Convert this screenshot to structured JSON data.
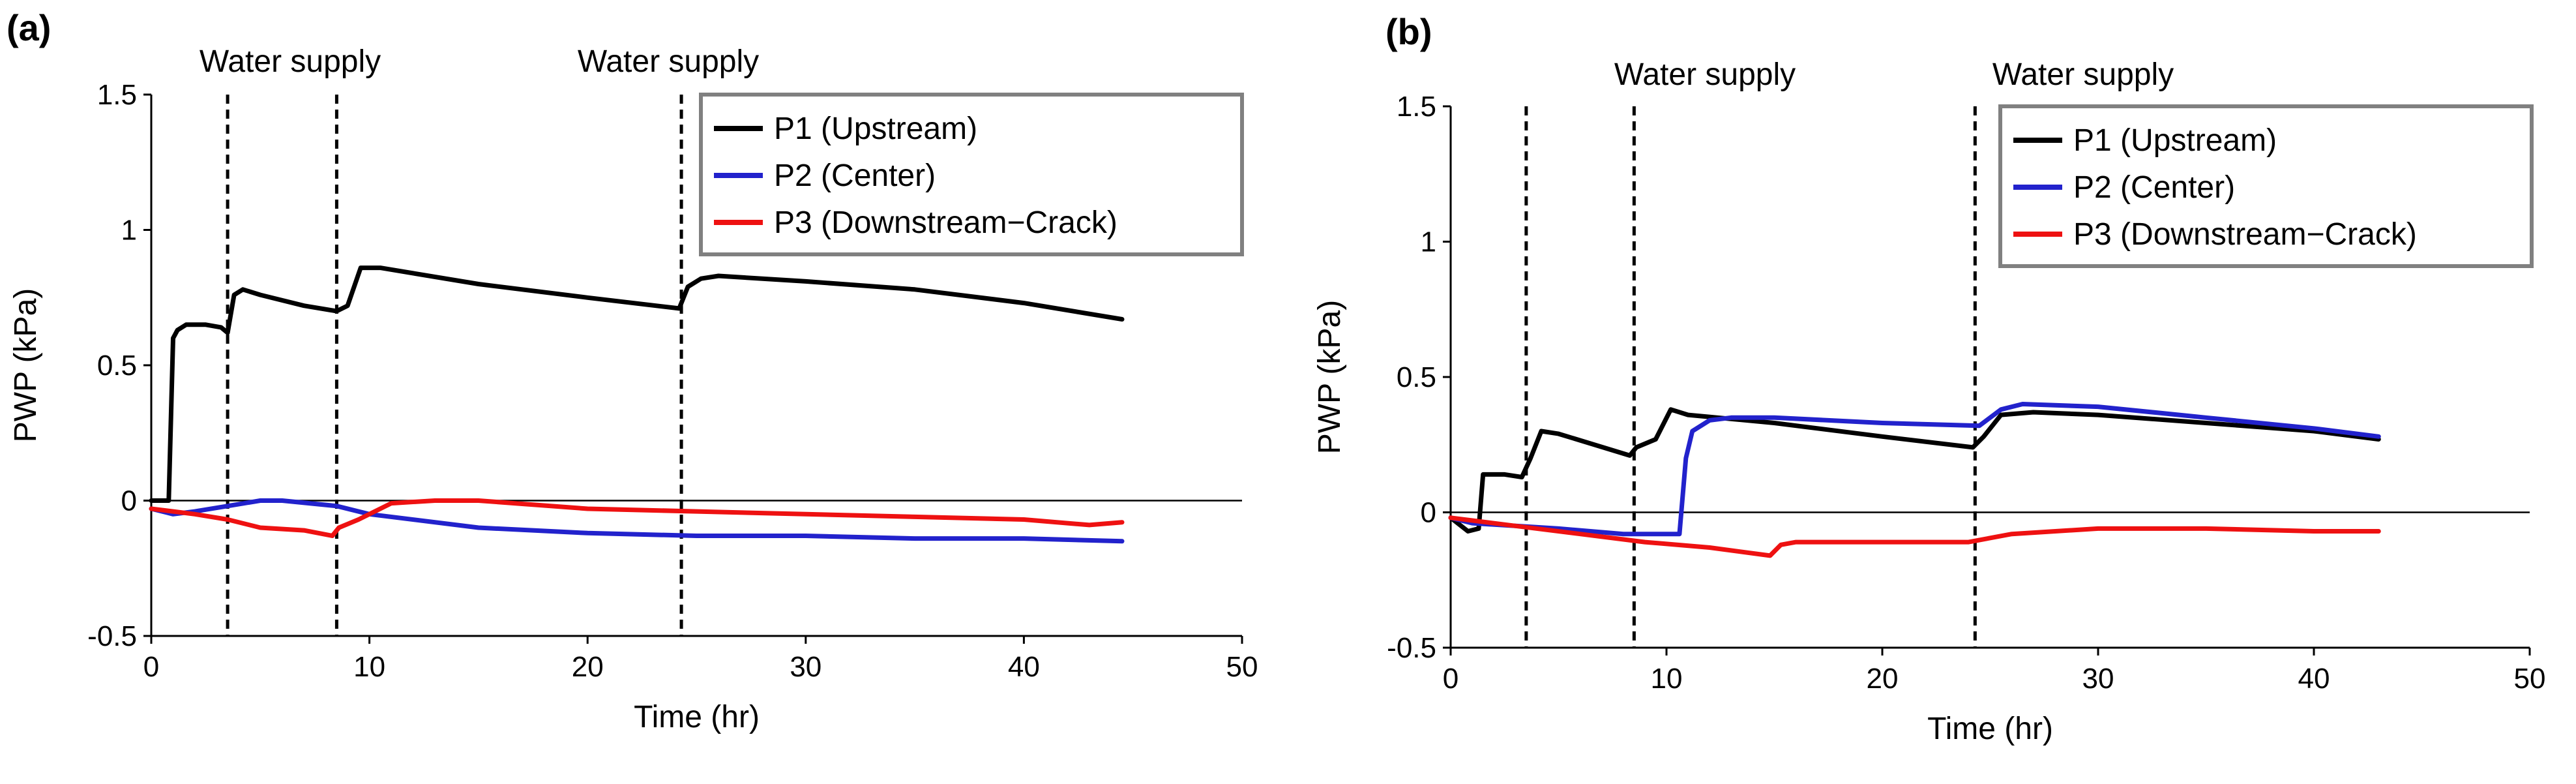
{
  "chart_data": [
    {
      "type": "line",
      "panel_label": "(a)",
      "xlabel": "Time (hr)",
      "ylabel": "PWP (kPa)",
      "xlim": [
        0,
        50
      ],
      "ylim": [
        -0.5,
        1.5
      ],
      "xticks": [
        "0",
        "10",
        "20",
        "30",
        "40",
        "50"
      ],
      "yticks": [
        "-0.5",
        "0",
        "0.5",
        "1",
        "1.5"
      ],
      "water_supply_times": [
        3.5,
        8.5,
        24.3
      ],
      "annotations": [
        "Water supply",
        "Water supply"
      ],
      "legend_position": "top-right",
      "series": [
        {
          "name": "P1 (Upstream)",
          "color": "#000000",
          "x": [
            0,
            0.8,
            1.0,
            1.2,
            1.6,
            2.5,
            3.2,
            3.5,
            3.8,
            4.2,
            5,
            7,
            8.5,
            9.0,
            9.6,
            10.5,
            15,
            20,
            24.2,
            24.6,
            25.2,
            26,
            30,
            35,
            40,
            44.5
          ],
          "y": [
            0,
            0,
            0.6,
            0.63,
            0.65,
            0.65,
            0.64,
            0.62,
            0.76,
            0.78,
            0.76,
            0.72,
            0.7,
            0.72,
            0.86,
            0.86,
            0.8,
            0.75,
            0.71,
            0.79,
            0.82,
            0.83,
            0.81,
            0.78,
            0.73,
            0.67
          ]
        },
        {
          "name": "P2 (Center)",
          "color": "#2222cc",
          "x": [
            0,
            1,
            2,
            3.5,
            5,
            6,
            8.5,
            10,
            15,
            20,
            25,
            30,
            35,
            40,
            44.5
          ],
          "y": [
            -0.03,
            -0.05,
            -0.04,
            -0.02,
            0.0,
            0.0,
            -0.02,
            -0.05,
            -0.1,
            -0.12,
            -0.13,
            -0.13,
            -0.14,
            -0.14,
            -0.15
          ]
        },
        {
          "name": "P3 (Downstream−Crack)",
          "color": "#ee1111",
          "x": [
            0,
            1,
            2,
            3.5,
            5,
            7,
            8.3,
            8.6,
            9.5,
            11,
            13,
            15,
            20,
            25,
            30,
            35,
            40,
            43,
            44.5
          ],
          "y": [
            -0.03,
            -0.04,
            -0.05,
            -0.07,
            -0.1,
            -0.11,
            -0.13,
            -0.1,
            -0.07,
            -0.01,
            0.0,
            0.0,
            -0.03,
            -0.04,
            -0.05,
            -0.06,
            -0.07,
            -0.09,
            -0.08
          ]
        }
      ]
    },
    {
      "type": "line",
      "panel_label": "(b)",
      "xlabel": "Time (hr)",
      "ylabel": "PWP (kPa)",
      "xlim": [
        0,
        50
      ],
      "ylim": [
        -0.5,
        1.5
      ],
      "xticks": [
        "0",
        "10",
        "20",
        "30",
        "40",
        "50"
      ],
      "yticks": [
        "-0.5",
        "0",
        "0.5",
        "1",
        "1.5"
      ],
      "water_supply_times": [
        3.5,
        8.5,
        24.3
      ],
      "annotations": [
        "Water supply",
        "Water supply"
      ],
      "legend_position": "top-right",
      "series": [
        {
          "name": "P1 (Upstream)",
          "color": "#000000",
          "x": [
            0,
            0.8,
            1.3,
            1.5,
            2.5,
            3.3,
            3.7,
            4.2,
            5,
            8.3,
            8.6,
            9.5,
            10.2,
            11,
            15,
            20,
            24.2,
            24.7,
            25.5,
            27,
            30,
            35,
            40,
            43
          ],
          "y": [
            -0.02,
            -0.07,
            -0.06,
            0.14,
            0.14,
            0.13,
            0.2,
            0.3,
            0.29,
            0.21,
            0.24,
            0.27,
            0.38,
            0.36,
            0.33,
            0.28,
            0.24,
            0.28,
            0.36,
            0.37,
            0.36,
            0.33,
            0.3,
            0.27
          ]
        },
        {
          "name": "P2 (Center)",
          "color": "#2222cc",
          "x": [
            0,
            1,
            3,
            5,
            8,
            10.6,
            10.9,
            11.2,
            12,
            13,
            15,
            20,
            24.5,
            25.5,
            26.5,
            30,
            35,
            40,
            43
          ],
          "y": [
            -0.02,
            -0.04,
            -0.05,
            -0.06,
            -0.08,
            -0.08,
            0.2,
            0.3,
            0.34,
            0.35,
            0.35,
            0.33,
            0.32,
            0.38,
            0.4,
            0.39,
            0.35,
            0.31,
            0.28
          ]
        },
        {
          "name": "P3 (Downstream−Crack)",
          "color": "#ee1111",
          "x": [
            0,
            1,
            3,
            6,
            9,
            12,
            14.8,
            15.3,
            16,
            20,
            24,
            26,
            30,
            35,
            40,
            43
          ],
          "y": [
            -0.02,
            -0.03,
            -0.05,
            -0.08,
            -0.11,
            -0.13,
            -0.16,
            -0.12,
            -0.11,
            -0.11,
            -0.11,
            -0.08,
            -0.06,
            -0.06,
            -0.07,
            -0.07
          ]
        }
      ]
    }
  ]
}
